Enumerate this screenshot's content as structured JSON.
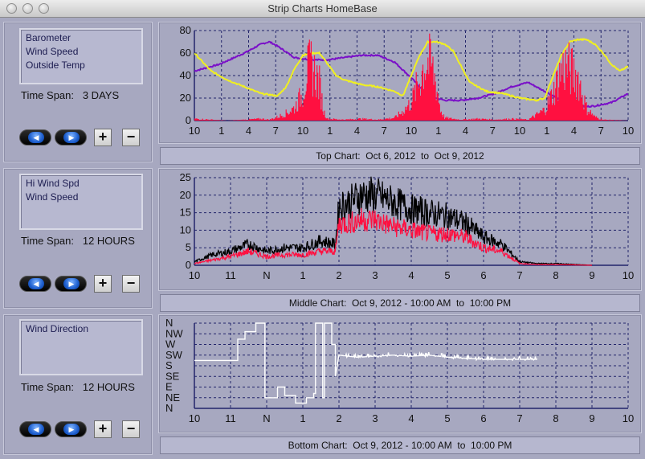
{
  "window": {
    "title": "Strip Charts    HomeBase"
  },
  "panels": [
    {
      "legend": [
        "Barometer",
        "Wind Speed",
        "Outside Temp"
      ],
      "time_span_label": "Time Span:",
      "time_span_value": "3 DAYS",
      "caption": "Top Chart:  Oct 6, 2012  to  Oct 9, 2012"
    },
    {
      "legend": [
        "Hi Wind Spd",
        "Wind Speed"
      ],
      "time_span_label": "Time Span:",
      "time_span_value": "12 HOURS",
      "caption": "Middle Chart:  Oct 9, 2012 - 10:00 AM  to  10:00 PM"
    },
    {
      "legend": [
        "Wind Direction"
      ],
      "time_span_label": "Time Span:",
      "time_span_value": "12 HOURS",
      "caption": "Bottom Chart:  Oct 9, 2012 - 10:00 AM  to  10:00 PM"
    }
  ],
  "controls": {
    "prev_symbol": "◀",
    "next_symbol": "▶",
    "zoom_in": "+",
    "zoom_out": "−"
  },
  "colors": {
    "plot_bg": "#a7a8c0",
    "grid": "#22246a",
    "barometer": "#7a10c8",
    "outside_temp": "#f0f020",
    "wind_speed": "#ff1040",
    "hi_wind": "#000000",
    "wind_dir": "#ffffff"
  },
  "chart_data": [
    {
      "type": "line",
      "title": "Top Chart:  Oct 6, 2012  to  Oct 9, 2012",
      "ylim": [
        0,
        80
      ],
      "yticks": [
        0,
        20,
        40,
        60,
        80
      ],
      "xticks": [
        "10",
        "1",
        "4",
        "7",
        "10",
        "1",
        "4",
        "7",
        "10",
        "1",
        "4",
        "7",
        "10",
        "1",
        "4",
        "7",
        "10"
      ],
      "series": [
        {
          "name": "Barometer",
          "color": "#7a10c8",
          "kind": "line",
          "points": [
            [
              0,
              44
            ],
            [
              3,
              50
            ],
            [
              6,
              60
            ],
            [
              8,
              68
            ],
            [
              9,
              70
            ],
            [
              10,
              66
            ],
            [
              12,
              56
            ],
            [
              14,
              54
            ],
            [
              16,
              54
            ],
            [
              18,
              56
            ],
            [
              20,
              58
            ],
            [
              22,
              58
            ],
            [
              24,
              52
            ],
            [
              26,
              38
            ],
            [
              28,
              22
            ],
            [
              30,
              18
            ],
            [
              32,
              18
            ],
            [
              34,
              20
            ],
            [
              36,
              24
            ],
            [
              38,
              30
            ],
            [
              40,
              34
            ],
            [
              42,
              26
            ],
            [
              44,
              18
            ],
            [
              46,
              12
            ],
            [
              48,
              13
            ],
            [
              50,
              16
            ],
            [
              52,
              24
            ]
          ]
        },
        {
          "name": "Outside Temp",
          "color": "#f0f020",
          "kind": "line",
          "points": [
            [
              0,
              60
            ],
            [
              2,
              44
            ],
            [
              4,
              36
            ],
            [
              6,
              30
            ],
            [
              8,
              24
            ],
            [
              10,
              22
            ],
            [
              11,
              30
            ],
            [
              12,
              46
            ],
            [
              13,
              58
            ],
            [
              14,
              60
            ],
            [
              15,
              60
            ],
            [
              16,
              50
            ],
            [
              17,
              40
            ],
            [
              18,
              36
            ],
            [
              20,
              32
            ],
            [
              22,
              30
            ],
            [
              24,
              26
            ],
            [
              25,
              22
            ],
            [
              26,
              40
            ],
            [
              27,
              58
            ],
            [
              28,
              70
            ],
            [
              29,
              70
            ],
            [
              30,
              68
            ],
            [
              31,
              62
            ],
            [
              32,
              48
            ],
            [
              33,
              34
            ],
            [
              35,
              26
            ],
            [
              37,
              24
            ],
            [
              39,
              20
            ],
            [
              41,
              18
            ],
            [
              42,
              20
            ],
            [
              43,
              40
            ],
            [
              44,
              58
            ],
            [
              45,
              70
            ],
            [
              46,
              72
            ],
            [
              47,
              72
            ],
            [
              48,
              68
            ],
            [
              49,
              60
            ],
            [
              50,
              50
            ],
            [
              51,
              44
            ],
            [
              52,
              48
            ]
          ]
        },
        {
          "name": "Wind Speed",
          "color": "#ff1040",
          "kind": "spikes",
          "points": [
            [
              0,
              2
            ],
            [
              2,
              1
            ],
            [
              4,
              0
            ],
            [
              6,
              1
            ],
            [
              8,
              2
            ],
            [
              9,
              1
            ],
            [
              10,
              4
            ],
            [
              11,
              8
            ],
            [
              12,
              14
            ],
            [
              13,
              30
            ],
            [
              13.5,
              55
            ],
            [
              14,
              60
            ],
            [
              14.5,
              52
            ],
            [
              15,
              40
            ],
            [
              15.5,
              10
            ],
            [
              16,
              2
            ],
            [
              18,
              1
            ],
            [
              20,
              2
            ],
            [
              22,
              1
            ],
            [
              24,
              3
            ],
            [
              25,
              10
            ],
            [
              26,
              20
            ],
            [
              27,
              45
            ],
            [
              27.5,
              60
            ],
            [
              28,
              65
            ],
            [
              28.5,
              58
            ],
            [
              29,
              40
            ],
            [
              29.5,
              12
            ],
            [
              30,
              3
            ],
            [
              32,
              1
            ],
            [
              34,
              2
            ],
            [
              36,
              1
            ],
            [
              38,
              2
            ],
            [
              40,
              1
            ],
            [
              41,
              6
            ],
            [
              42,
              12
            ],
            [
              43,
              30
            ],
            [
              44,
              55
            ],
            [
              44.5,
              60
            ],
            [
              45,
              56
            ],
            [
              46,
              48
            ],
            [
              46.5,
              30
            ],
            [
              47,
              14
            ],
            [
              48,
              4
            ],
            [
              49,
              1
            ],
            [
              52,
              0
            ]
          ]
        }
      ],
      "x_range": [
        0,
        52
      ]
    },
    {
      "type": "line",
      "title": "Middle Chart:  Oct 9, 2012 - 10:00 AM  to  10:00 PM",
      "ylim": [
        0,
        25
      ],
      "yticks": [
        0,
        5,
        10,
        15,
        20,
        25
      ],
      "xticks": [
        "10",
        "11",
        "N",
        "1",
        "2",
        "3",
        "4",
        "5",
        "6",
        "7",
        "8",
        "9",
        "10"
      ],
      "series": [
        {
          "name": "Hi Wind Spd",
          "color": "#000000",
          "kind": "noisy",
          "points": [
            [
              0,
              1
            ],
            [
              0.5,
              3
            ],
            [
              1,
              4
            ],
            [
              1.5,
              6
            ],
            [
              2,
              4
            ],
            [
              2.5,
              5
            ],
            [
              3,
              5
            ],
            [
              3.5,
              7
            ],
            [
              3.9,
              6
            ],
            [
              4.0,
              17
            ],
            [
              4.3,
              18
            ],
            [
              4.6,
              20
            ],
            [
              5,
              20
            ],
            [
              5.5,
              18
            ],
            [
              6,
              16
            ],
            [
              6.5,
              15
            ],
            [
              7,
              14
            ],
            [
              7.5,
              12
            ],
            [
              8,
              8
            ],
            [
              8.5,
              6
            ],
            [
              9,
              1
            ],
            [
              9.5,
              0.5
            ],
            [
              10,
              0.5
            ],
            [
              11,
              0
            ]
          ]
        },
        {
          "name": "Wind Speed",
          "color": "#ff1040",
          "kind": "noisy",
          "points": [
            [
              0,
              0.5
            ],
            [
              0.5,
              1.5
            ],
            [
              1,
              2.5
            ],
            [
              1.5,
              4
            ],
            [
              2,
              2.5
            ],
            [
              2.5,
              3
            ],
            [
              3,
              3
            ],
            [
              3.5,
              4
            ],
            [
              3.9,
              4
            ],
            [
              4.0,
              12
            ],
            [
              4.3,
              12
            ],
            [
              4.6,
              13
            ],
            [
              5,
              13
            ],
            [
              5.5,
              11
            ],
            [
              6,
              10
            ],
            [
              6.5,
              9
            ],
            [
              7,
              9
            ],
            [
              7.5,
              8
            ],
            [
              8,
              5
            ],
            [
              8.5,
              4
            ],
            [
              9,
              0.5
            ],
            [
              9.5,
              0.2
            ],
            [
              10,
              0.2
            ],
            [
              11,
              0
            ]
          ]
        }
      ],
      "x_range": [
        0,
        12
      ]
    },
    {
      "type": "line",
      "title": "Bottom Chart:  Oct 9, 2012 - 10:00 AM  to  10:00 PM",
      "ylim": [
        0,
        8
      ],
      "yticks": [
        "N",
        "NE",
        "E",
        "SE",
        "S",
        "SW",
        "W",
        "NW",
        "N"
      ],
      "xticks": [
        "10",
        "11",
        "N",
        "1",
        "2",
        "3",
        "4",
        "5",
        "6",
        "7",
        "8",
        "9",
        "10"
      ],
      "series": [
        {
          "name": "Wind Direction",
          "color": "#ffffff",
          "kind": "step",
          "points": [
            [
              0,
              4.5
            ],
            [
              1.1,
              4.5
            ],
            [
              1.2,
              6.5
            ],
            [
              1.4,
              7.2
            ],
            [
              1.6,
              7.2
            ],
            [
              1.7,
              8
            ],
            [
              1.9,
              8
            ],
            [
              1.95,
              1
            ],
            [
              2.2,
              1
            ],
            [
              2.3,
              2
            ],
            [
              2.4,
              2
            ],
            [
              2.5,
              1.2
            ],
            [
              2.7,
              1.2
            ],
            [
              2.8,
              0.5
            ],
            [
              3.0,
              0.5
            ],
            [
              3.1,
              1
            ],
            [
              3.3,
              1.4
            ],
            [
              3.35,
              8
            ],
            [
              3.5,
              8
            ],
            [
              3.55,
              1
            ],
            [
              3.6,
              8
            ],
            [
              3.7,
              8
            ],
            [
              3.8,
              6
            ],
            [
              3.9,
              3
            ],
            [
              4.0,
              5
            ],
            [
              4.5,
              4.8
            ],
            [
              5,
              4.9
            ],
            [
              5.5,
              5
            ],
            [
              6,
              4.9
            ],
            [
              6.5,
              5
            ],
            [
              7,
              4.8
            ],
            [
              7.5,
              4.7
            ],
            [
              8,
              4.6
            ],
            [
              8.5,
              4.6
            ],
            [
              9,
              4.6
            ],
            [
              9.5,
              4.6
            ]
          ]
        }
      ],
      "x_range": [
        0,
        12
      ]
    }
  ]
}
